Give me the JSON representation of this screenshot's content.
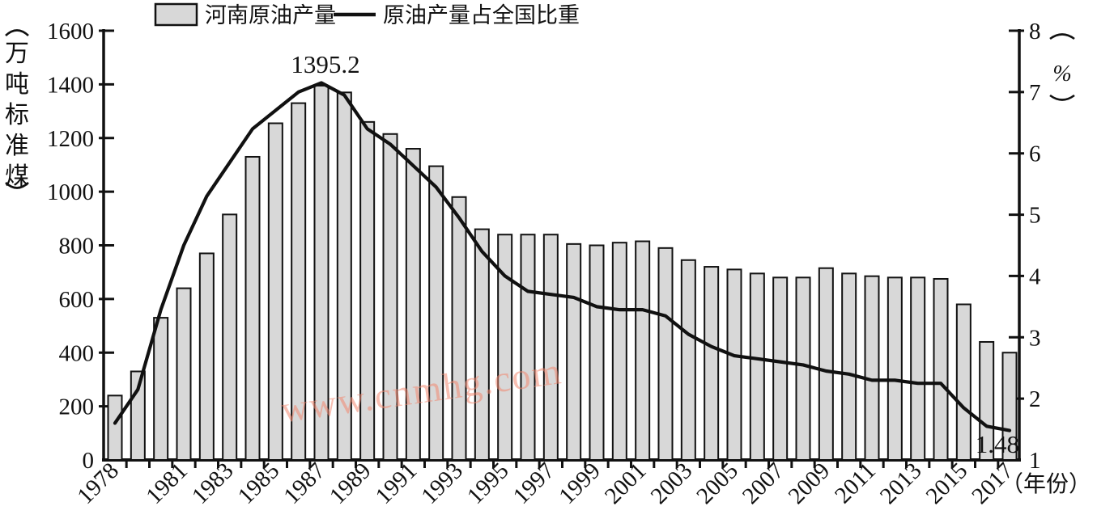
{
  "chart_data": {
    "type": "bar+line",
    "title": "",
    "categories": [
      1978,
      1979,
      1980,
      1981,
      1982,
      1983,
      1984,
      1985,
      1986,
      1987,
      1988,
      1989,
      1990,
      1991,
      1992,
      1993,
      1994,
      1995,
      1996,
      1997,
      1998,
      1999,
      2000,
      2001,
      2002,
      2003,
      2004,
      2005,
      2006,
      2007,
      2008,
      2009,
      2010,
      2011,
      2012,
      2013,
      2014,
      2015,
      2016,
      2017
    ],
    "series": [
      {
        "name": "河南原油产量",
        "type": "bar",
        "axis": "left",
        "values": [
          240,
          330,
          530,
          640,
          770,
          915,
          1130,
          1255,
          1330,
          1395.2,
          1370,
          1260,
          1215,
          1160,
          1095,
          980,
          860,
          840,
          840,
          840,
          805,
          800,
          810,
          815,
          790,
          745,
          720,
          710,
          695,
          680,
          680,
          715,
          695,
          685,
          680,
          680,
          675,
          580,
          440,
          400
        ]
      },
      {
        "name": "原油产量占全国比重",
        "type": "line",
        "axis": "right",
        "values": [
          1.6,
          2.15,
          3.45,
          4.5,
          5.3,
          5.85,
          6.4,
          6.7,
          7.0,
          7.15,
          6.95,
          6.4,
          6.15,
          5.8,
          5.45,
          4.95,
          4.4,
          4.0,
          3.75,
          3.7,
          3.65,
          3.5,
          3.45,
          3.45,
          3.35,
          3.05,
          2.85,
          2.7,
          2.65,
          2.6,
          2.55,
          2.45,
          2.4,
          2.3,
          2.3,
          2.25,
          2.25,
          1.85,
          1.55,
          1.48
        ]
      }
    ],
    "left_axis": {
      "unit_label": "（万吨标准煤）",
      "unit_chars": [
        "万",
        "吨",
        "标",
        "准",
        "煤"
      ],
      "min": 0,
      "max": 1600,
      "step": 200,
      "ticks": [
        0,
        200,
        400,
        600,
        800,
        1000,
        1200,
        1400,
        1600
      ]
    },
    "right_axis": {
      "unit_label": "（%）",
      "unit_symbol": "%",
      "min": 1,
      "max": 8,
      "step": 1,
      "ticks": [
        1,
        2,
        3,
        4,
        5,
        6,
        7,
        8
      ]
    },
    "x_axis": {
      "title": "（年份）",
      "shown_labels": [
        "1978",
        "1981",
        "1983",
        "1985",
        "1987",
        "1989",
        "1991",
        "1993",
        "1995",
        "1997",
        "1999",
        "2001",
        "2003",
        "2005",
        "2007",
        "2009",
        "2011",
        "2013",
        "2015",
        "2017"
      ],
      "shown_label_indices": [
        0,
        3,
        5,
        7,
        9,
        11,
        13,
        15,
        17,
        19,
        21,
        23,
        25,
        27,
        29,
        31,
        33,
        35,
        37,
        39
      ]
    },
    "annotations": [
      {
        "text": "1395.2",
        "series": "河南原油产量",
        "category": 1987,
        "value": 1395.2
      },
      {
        "text": "1.48",
        "series": "原油产量占全国比重",
        "category": 2017,
        "value": 1.48
      }
    ],
    "legend": {
      "position": "top",
      "bar_label": "河南原油产量",
      "line_label": "原油产量占全国比重"
    },
    "colors": {
      "bar_fill": "#d8d8d8",
      "bar_stroke": "#111111",
      "line_stroke": "#111111",
      "background": "#ffffff",
      "watermark": "#f28971"
    },
    "grid": false
  },
  "watermark": {
    "text": "www.cnmhg.com"
  },
  "labels": {
    "peak_annotation": "1395.2",
    "end_annotation": "1.48",
    "x_axis_title": "（年份）"
  }
}
